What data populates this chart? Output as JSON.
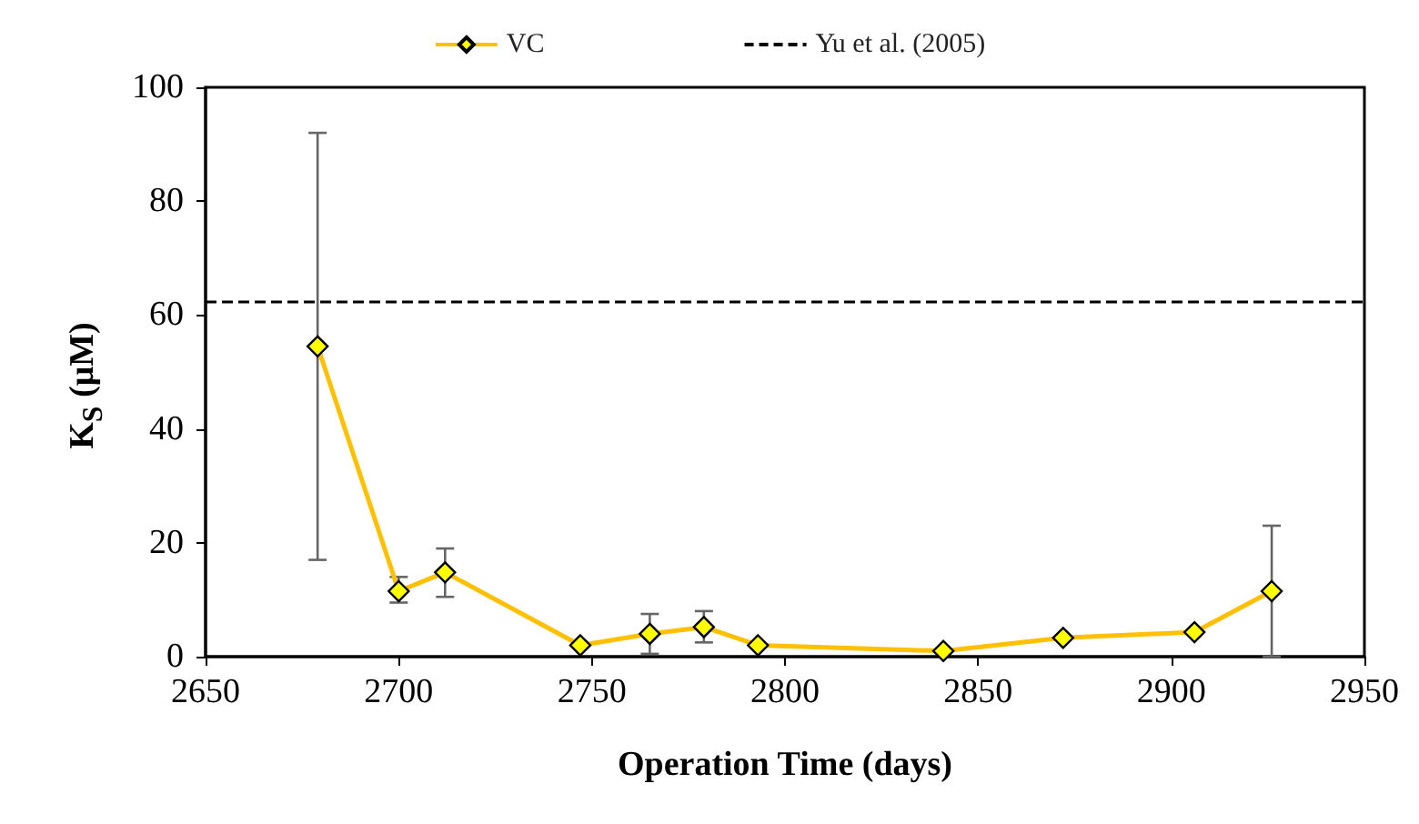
{
  "chart_data": {
    "type": "line",
    "xlabel": "Operation Time (days)",
    "ylabel": "K$_{S}$ (μM)",
    "xlim": [
      2650,
      2950
    ],
    "xticks": [
      2650,
      2700,
      2750,
      2800,
      2850,
      2900,
      2950
    ],
    "ylim": [
      0,
      100
    ],
    "yticks": [
      0,
      20,
      40,
      60,
      80,
      100
    ],
    "series": [
      {
        "name": "VC",
        "color": "#ffc000",
        "x": [
          2679,
          2700,
          2712,
          2747,
          2765,
          2779,
          2793,
          2841,
          2872,
          2906,
          2926
        ],
        "values": [
          54.5,
          11.5,
          14.8,
          2,
          4,
          5.2,
          2,
          1,
          3.3,
          4.3,
          11.5
        ],
        "errors": [
          [
            17,
            92
          ],
          [
            9.5,
            14
          ],
          [
            10.5,
            19
          ],
          null,
          [
            0.5,
            7.5
          ],
          [
            2.5,
            8
          ],
          null,
          null,
          null,
          null,
          [
            0,
            23
          ]
        ]
      }
    ],
    "ref_lines": [
      {
        "axis": "y",
        "value": 62.5,
        "label": "Yu et al. (2005)",
        "color": "#000000",
        "line_style": "dashed"
      }
    ],
    "marker": "diamond",
    "line_style": "solid",
    "grid": false,
    "legend": "top"
  }
}
